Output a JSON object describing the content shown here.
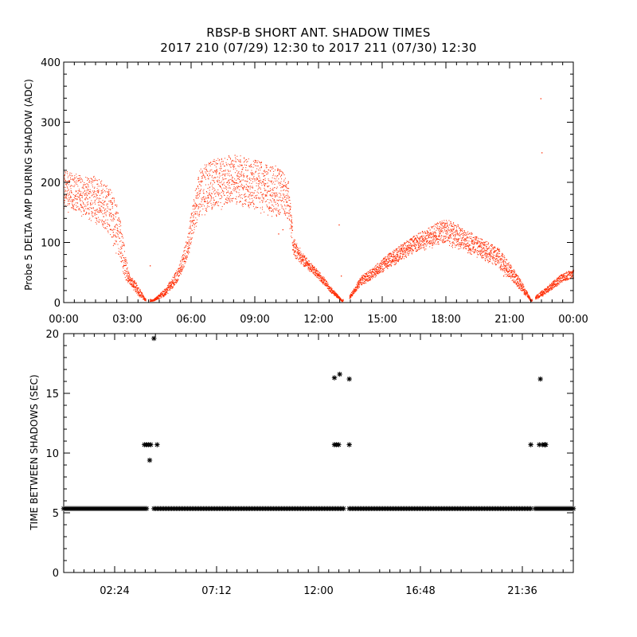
{
  "header": {
    "title": "RBSP-B SHORT ANT. SHADOW TIMES",
    "subtitle": "2017 210 (07/29) 12:30 to 2017 211 (07/30) 12:30"
  },
  "colors": {
    "top_series": "#ff2a00",
    "bottom_series": "#000000",
    "axes": "#000000"
  },
  "chart_data": [
    {
      "type": "scatter",
      "title": "",
      "ylabel": "Probe 5 DELTA AMP DURING SHADOW (ADC)",
      "xlabel": "",
      "xlim": [
        0,
        24
      ],
      "ylim": [
        0,
        400
      ],
      "xtick_labels": [
        "00:00",
        "03:00",
        "06:00",
        "09:00",
        "12:00",
        "15:00",
        "18:00",
        "21:00",
        "00:00"
      ],
      "ytick_labels": [
        "0",
        "100",
        "200",
        "300",
        "400"
      ],
      "envelope_upper": [
        [
          0,
          220
        ],
        [
          0.5,
          215
        ],
        [
          1,
          212
        ],
        [
          1.5,
          212
        ],
        [
          2,
          198
        ],
        [
          2.4,
          178
        ],
        [
          2.7,
          130
        ],
        [
          2.9,
          80
        ],
        [
          3.1,
          45
        ],
        [
          3.4,
          35
        ],
        [
          3.8,
          8
        ],
        [
          4.2,
          5
        ],
        [
          4.8,
          25
        ],
        [
          5.4,
          60
        ],
        [
          5.8,
          110
        ],
        [
          6.1,
          175
        ],
        [
          6.4,
          225
        ],
        [
          7,
          238
        ],
        [
          7.5,
          244
        ],
        [
          8,
          246
        ],
        [
          8.5,
          244
        ],
        [
          9,
          238
        ],
        [
          9.5,
          234
        ],
        [
          10,
          228
        ],
        [
          10.3,
          220
        ],
        [
          10.6,
          200
        ],
        [
          10.8,
          110
        ],
        [
          11.3,
          80
        ],
        [
          11.8,
          60
        ],
        [
          12.2,
          45
        ],
        [
          12.6,
          25
        ],
        [
          13.1,
          5
        ],
        [
          13.5,
          15
        ],
        [
          14,
          45
        ],
        [
          14.6,
          60
        ],
        [
          15.2,
          80
        ],
        [
          15.8,
          95
        ],
        [
          16.4,
          110
        ],
        [
          17,
          122
        ],
        [
          17.5,
          132
        ],
        [
          18,
          140
        ],
        [
          18.5,
          132
        ],
        [
          19,
          120
        ],
        [
          19.5,
          112
        ],
        [
          20,
          100
        ],
        [
          20.5,
          90
        ],
        [
          21,
          65
        ],
        [
          21.5,
          40
        ],
        [
          22,
          5
        ],
        [
          22.5,
          20
        ],
        [
          23,
          35
        ],
        [
          23.5,
          50
        ],
        [
          24,
          55
        ]
      ],
      "envelope_lower": [
        [
          0,
          150
        ],
        [
          0.5,
          148
        ],
        [
          1,
          140
        ],
        [
          1.5,
          128
        ],
        [
          2,
          110
        ],
        [
          2.4,
          85
        ],
        [
          2.7,
          60
        ],
        [
          2.9,
          35
        ],
        [
          3.1,
          30
        ],
        [
          3.4,
          15
        ],
        [
          3.8,
          3
        ],
        [
          4.2,
          2
        ],
        [
          4.8,
          12
        ],
        [
          5.4,
          35
        ],
        [
          5.8,
          70
        ],
        [
          6.1,
          110
        ],
        [
          6.4,
          140
        ],
        [
          7,
          150
        ],
        [
          7.5,
          155
        ],
        [
          8,
          158
        ],
        [
          8.5,
          155
        ],
        [
          9,
          150
        ],
        [
          9.5,
          145
        ],
        [
          10,
          140
        ],
        [
          10.3,
          140
        ],
        [
          10.6,
          130
        ],
        [
          10.8,
          75
        ],
        [
          11.3,
          60
        ],
        [
          11.8,
          45
        ],
        [
          12.2,
          30
        ],
        [
          12.6,
          15
        ],
        [
          13.1,
          2
        ],
        [
          13.5,
          8
        ],
        [
          14,
          28
        ],
        [
          14.6,
          40
        ],
        [
          15.2,
          55
        ],
        [
          15.8,
          68
        ],
        [
          16.4,
          80
        ],
        [
          17,
          88
        ],
        [
          17.5,
          92
        ],
        [
          18,
          95
        ],
        [
          18.5,
          90
        ],
        [
          19,
          82
        ],
        [
          19.5,
          75
        ],
        [
          20,
          65
        ],
        [
          20.5,
          55
        ],
        [
          21,
          38
        ],
        [
          21.5,
          20
        ],
        [
          22,
          2
        ],
        [
          22.5,
          10
        ],
        [
          23,
          22
        ],
        [
          23.5,
          35
        ],
        [
          24,
          40
        ]
      ],
      "outliers": [
        [
          4.05,
          62
        ],
        [
          10.1,
          115
        ],
        [
          10.3,
          122
        ],
        [
          12.95,
          130
        ],
        [
          13.05,
          45
        ],
        [
          20.7,
          45
        ],
        [
          22.45,
          340
        ],
        [
          22.5,
          250
        ]
      ],
      "gaps": [
        [
          3.85,
          4.05
        ],
        [
          13.15,
          13.45
        ],
        [
          22.05,
          22.2
        ]
      ]
    },
    {
      "type": "scatter",
      "title": "",
      "ylabel": "TIME BETWEEN SHADOWS (SEC)",
      "xlabel": "",
      "xlim": [
        0,
        24
      ],
      "ylim": [
        0,
        20
      ],
      "xtick_labels": [
        "02:24",
        "07:12",
        "12:00",
        "16:48",
        "21:36"
      ],
      "xtick_values": [
        2.4,
        7.2,
        12.0,
        16.8,
        21.6
      ],
      "ytick_labels": [
        "0",
        "5",
        "10",
        "15",
        "20"
      ],
      "baseline_value": 5.35,
      "baseline_segments": [
        [
          0,
          3.95
        ],
        [
          4.25,
          13.2
        ],
        [
          13.45,
          22.05
        ],
        [
          22.2,
          24
        ]
      ],
      "points": [
        [
          3.8,
          10.7
        ],
        [
          3.9,
          10.7
        ],
        [
          4.0,
          10.7
        ],
        [
          4.1,
          10.7
        ],
        [
          4.05,
          9.4
        ],
        [
          4.25,
          19.6
        ],
        [
          4.4,
          10.7
        ],
        [
          12.75,
          16.3
        ],
        [
          12.75,
          10.7
        ],
        [
          12.85,
          10.7
        ],
        [
          12.95,
          10.7
        ],
        [
          13.0,
          16.6
        ],
        [
          13.45,
          16.2
        ],
        [
          13.45,
          10.7
        ],
        [
          22.0,
          10.7
        ],
        [
          22.4,
          10.7
        ],
        [
          22.45,
          16.2
        ],
        [
          22.55,
          10.7
        ],
        [
          22.65,
          10.7
        ],
        [
          22.7,
          10.7
        ]
      ]
    }
  ]
}
